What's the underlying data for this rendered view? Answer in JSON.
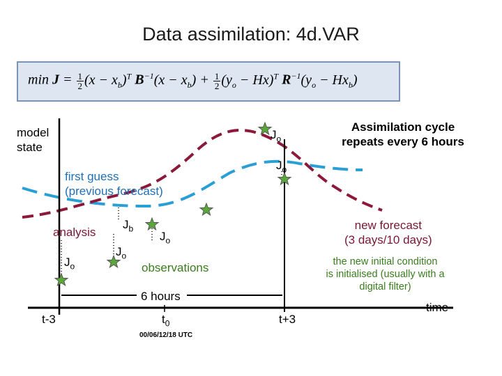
{
  "title": "Data assimilation: 4d.VAR",
  "formula": {
    "min": "min",
    "J": "J",
    "eq": "=",
    "half": "1",
    "two": "2",
    "term1_open": "(x − x",
    "term1_sub": "b",
    "term1_close": ")",
    "T": "T",
    "Binv": "B",
    "minus1": "−1",
    "term2": "(x − x",
    "plus": "+",
    "term3_open": "(y",
    "term3_sub": "o",
    "term3_mid": " − Hx",
    "term3_close": ")",
    "Rinv": "R",
    "term4": "(y",
    "term4_mid": " − Hx",
    "term4_sub": "b",
    "term4_close": ")"
  },
  "labels": {
    "model_state": "model\nstate",
    "cycle": "Assimilation cycle\nrepeats every 6 hours",
    "first_guess": "first guess\n(previous forecast)",
    "analysis": "analysis",
    "new_forecast": "new forecast\n(3 days/10 days)",
    "observations": "observations",
    "initial_condition": "the new initial condition\nis initialised (usually with a\ndigital filter)",
    "six_hours": "6 hours",
    "time": "time",
    "t_minus3": "t-3",
    "t0": "t",
    "t0_sub": "0",
    "t_plus3": "t+3",
    "timestamp": "00/06/12/18 UTC"
  },
  "cost_labels": [
    {
      "main": "J",
      "sub": "o"
    },
    {
      "main": "J",
      "sub": "o"
    },
    {
      "main": "J",
      "sub": "b"
    },
    {
      "main": "J",
      "sub": "o"
    },
    {
      "main": "J",
      "sub": "o"
    },
    {
      "main": "J",
      "sub": "o"
    }
  ],
  "colors": {
    "first_guess": "#2a9fd6",
    "analysis": "#8b1a3a",
    "observation_star": "#5aa83a",
    "formula_bg": "#dde6f1",
    "formula_border": "#7b93b5",
    "text_green": "#3a7d1e"
  }
}
